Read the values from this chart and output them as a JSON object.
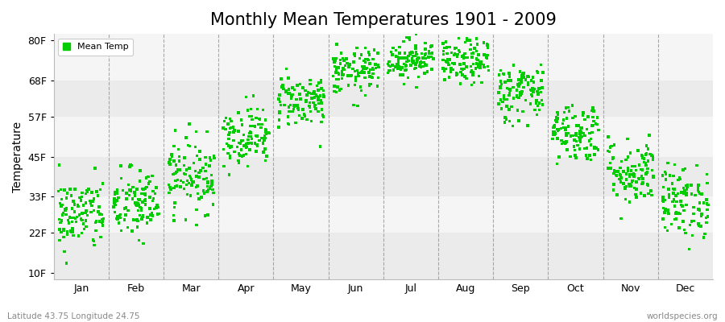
{
  "title": "Monthly Mean Temperatures 1901 - 2009",
  "ylabel": "Temperature",
  "xlabel_labels": [
    "Jan",
    "Feb",
    "Mar",
    "Apr",
    "May",
    "Jun",
    "Jul",
    "Aug",
    "Sep",
    "Oct",
    "Nov",
    "Dec"
  ],
  "ytick_values": [
    10,
    22,
    33,
    45,
    57,
    68,
    80
  ],
  "ytick_labels": [
    "10F",
    "22F",
    "33F",
    "45F",
    "57F",
    "68F",
    "80F"
  ],
  "ylim": [
    8,
    82
  ],
  "xlim": [
    0,
    12
  ],
  "marker_color": "#00cc00",
  "marker_size": 2.5,
  "stripe_colors": [
    "#ebebeb",
    "#f5f5f5"
  ],
  "title_fontsize": 15,
  "axis_label_fontsize": 10,
  "tick_fontsize": 9,
  "legend_label": "Mean Temp",
  "footer_left": "Latitude 43.75 Longitude 24.75",
  "footer_right": "worldspecies.org",
  "start_year": 1901,
  "end_year": 2009,
  "monthly_means_F": [
    27.5,
    30.5,
    39.5,
    51.5,
    62.0,
    70.5,
    74.5,
    73.5,
    64.5,
    52.5,
    40.5,
    31.5
  ],
  "monthly_stds_F": [
    5.5,
    5.5,
    5.5,
    4.5,
    4.0,
    3.5,
    3.0,
    3.5,
    4.5,
    4.5,
    5.0,
    5.5
  ]
}
